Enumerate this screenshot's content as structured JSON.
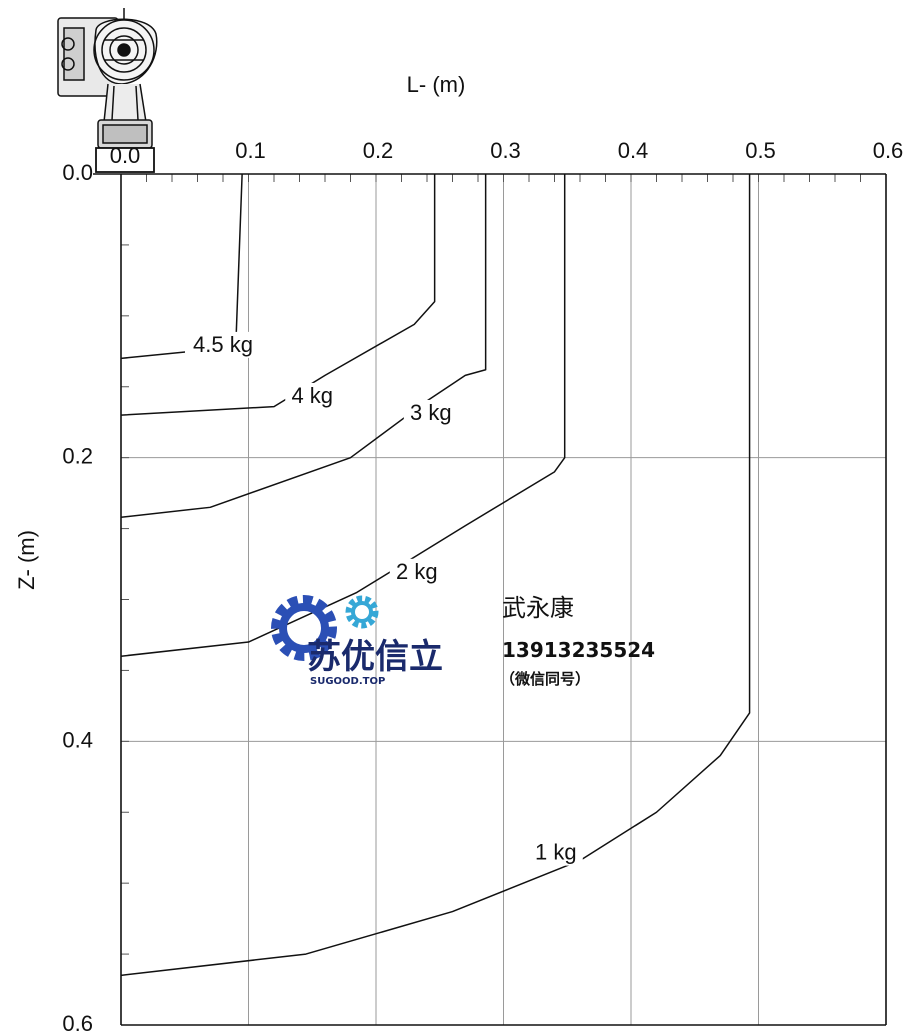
{
  "chart_data": {
    "type": "line",
    "xlabel": "L- (m)",
    "ylabel": "Z- (m)",
    "xlim": [
      0.0,
      0.6
    ],
    "ylim": [
      0.0,
      0.6
    ],
    "y_inverted": true,
    "x_axis_position": "top",
    "x_ticks": [
      {
        "value": 0.0,
        "label": "0.0"
      },
      {
        "value": 0.1,
        "label": "0.1"
      },
      {
        "value": 0.2,
        "label": "0.2"
      },
      {
        "value": 0.3,
        "label": "0.3"
      },
      {
        "value": 0.4,
        "label": "0.4"
      },
      {
        "value": 0.5,
        "label": "0.5"
      },
      {
        "value": 0.6,
        "label": "0.6"
      }
    ],
    "y_ticks": [
      {
        "value": 0.0,
        "label": "0.0"
      },
      {
        "value": 0.2,
        "label": "0.2"
      },
      {
        "value": 0.4,
        "label": "0.4"
      },
      {
        "value": 0.6,
        "label": "0.6"
      }
    ],
    "grid": true,
    "series": [
      {
        "name": "4.5 kg",
        "points": [
          [
            0.0,
            0.13
          ],
          [
            0.09,
            0.122
          ],
          [
            0.095,
            0.0
          ]
        ],
        "label_at": [
          0.08,
          0.124
        ]
      },
      {
        "name": "4 kg",
        "points": [
          [
            0.0,
            0.17
          ],
          [
            0.12,
            0.164
          ],
          [
            0.16,
            0.142
          ],
          [
            0.23,
            0.106
          ],
          [
            0.246,
            0.09
          ],
          [
            0.246,
            0.0
          ]
        ],
        "label_at": [
          0.15,
          0.16
        ]
      },
      {
        "name": "3 kg",
        "points": [
          [
            0.0,
            0.242
          ],
          [
            0.07,
            0.235
          ],
          [
            0.18,
            0.2
          ],
          [
            0.24,
            0.16
          ],
          [
            0.27,
            0.142
          ],
          [
            0.286,
            0.138
          ],
          [
            0.286,
            0.0
          ]
        ],
        "label_at": [
          0.243,
          0.172
        ]
      },
      {
        "name": "2 kg",
        "points": [
          [
            0.0,
            0.34
          ],
          [
            0.1,
            0.33
          ],
          [
            0.185,
            0.295
          ],
          [
            0.27,
            0.248
          ],
          [
            0.34,
            0.21
          ],
          [
            0.348,
            0.2
          ],
          [
            0.348,
            0.0
          ]
        ],
        "label_at": [
          0.232,
          0.284
        ]
      },
      {
        "name": "1 kg",
        "points": [
          [
            0.0,
            0.565
          ],
          [
            0.145,
            0.55
          ],
          [
            0.26,
            0.52
          ],
          [
            0.36,
            0.484
          ],
          [
            0.42,
            0.45
          ],
          [
            0.47,
            0.41
          ],
          [
            0.493,
            0.38
          ],
          [
            0.493,
            0.0
          ]
        ],
        "label_at": [
          0.341,
          0.482
        ]
      }
    ]
  },
  "corner_label": "0.0",
  "watermark": {
    "brand": "苏优信立",
    "site": "SUGOOD.TOP",
    "name": "武永康",
    "phone": "13913235524",
    "note": "（微信同号）"
  }
}
